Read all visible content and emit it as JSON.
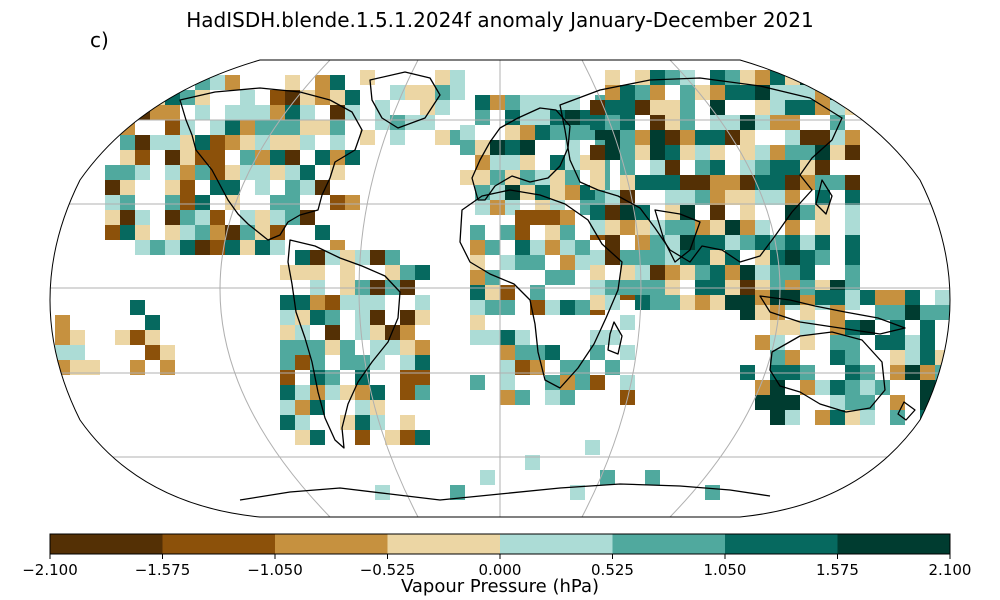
{
  "title": "HadISDH.blende.1.5.1.2024f anomaly January-December 2021",
  "panel_label": "c)",
  "colorbar": {
    "label": "Vapour Pressure (hPa)",
    "ticks": [
      "−2.100",
      "−1.575",
      "−1.050",
      "−0.525",
      "0.000",
      "0.525",
      "1.050",
      "1.575",
      "2.100"
    ],
    "colors": [
      "#543005",
      "#8c510a",
      "#c6913f",
      "#ecd6a4",
      "#acdcd6",
      "#50a99e",
      "#06695f",
      "#003c30"
    ]
  },
  "map": {
    "projection": "Robinson",
    "graticule": true,
    "coastlines": true,
    "variable": "Vapour Pressure anomaly (hPa)",
    "period": "January-December 2021"
  }
}
